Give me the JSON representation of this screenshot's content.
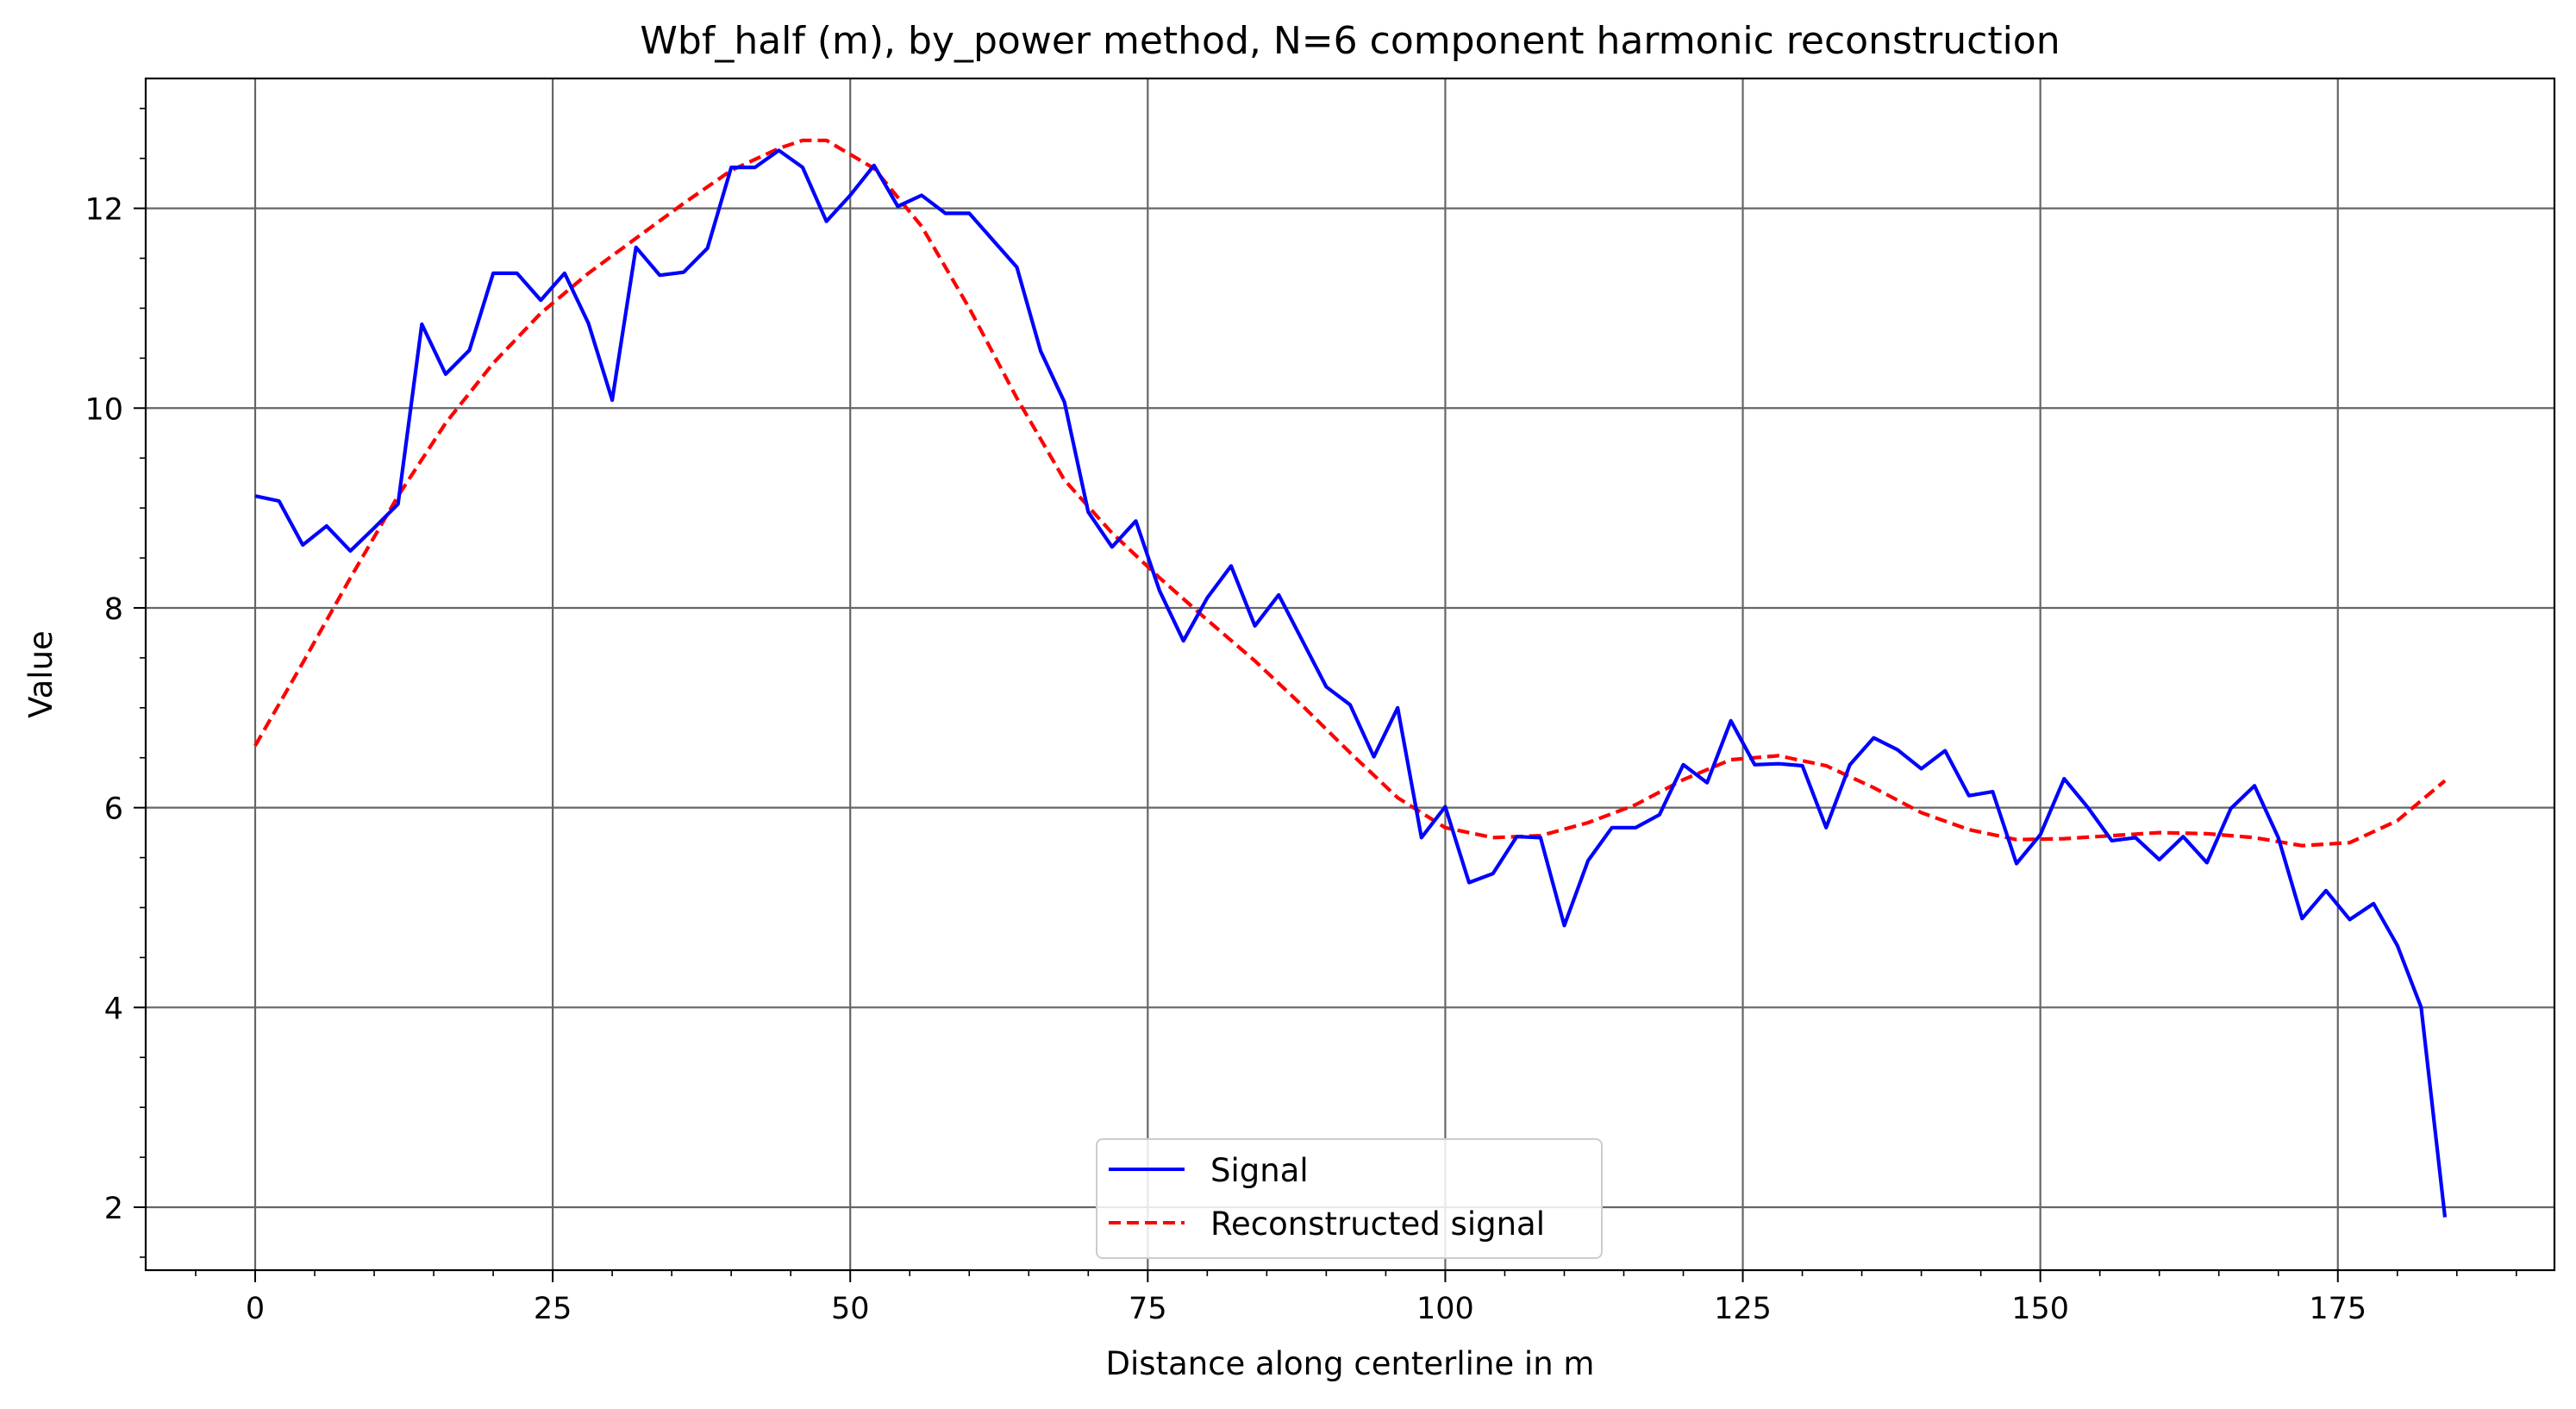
{
  "chart_data": {
    "type": "line",
    "title": "Wbf_half (m), by_power method, N=6 component harmonic reconstruction",
    "xlabel": "Distance along centerline in m",
    "ylabel": "Value",
    "xlim": [
      -9.2,
      193.2
    ],
    "ylim": [
      1.37,
      13.3
    ],
    "xticks": [
      0,
      25,
      50,
      75,
      100,
      125,
      150,
      175
    ],
    "yticks": [
      2,
      4,
      6,
      8,
      10,
      12
    ],
    "grid": true,
    "legend": {
      "position": "bottom-center",
      "entries": [
        "Signal",
        "Reconstructed signal"
      ]
    },
    "series": [
      {
        "name": "Signal",
        "color": "#0000ff",
        "style": "solid",
        "x": [
          0,
          2,
          4,
          6,
          8,
          10,
          12,
          14,
          16,
          18,
          20,
          22,
          24,
          26,
          28,
          30,
          32,
          34,
          36,
          38,
          40,
          42,
          44,
          46,
          48,
          50,
          52,
          54,
          56,
          58,
          60,
          62,
          64,
          66,
          68,
          70,
          72,
          74,
          76,
          78,
          80,
          82,
          84,
          86,
          88,
          90,
          92,
          94,
          96,
          98,
          100,
          102,
          104,
          106,
          108,
          110,
          112,
          114,
          116,
          118,
          120,
          122,
          124,
          126,
          128,
          130,
          132,
          134,
          136,
          138,
          140,
          142,
          144,
          146,
          148,
          150,
          152,
          154,
          156,
          158,
          160,
          162,
          164,
          166,
          168,
          170,
          172,
          174,
          176,
          178,
          180,
          182,
          184
        ],
        "y": [
          9.12,
          9.07,
          8.63,
          8.82,
          8.57,
          8.8,
          9.04,
          10.84,
          10.34,
          10.58,
          11.35,
          11.35,
          11.08,
          11.35,
          10.85,
          10.08,
          11.61,
          11.33,
          11.36,
          11.6,
          12.41,
          12.41,
          12.58,
          12.41,
          11.87,
          12.13,
          12.43,
          12.02,
          12.13,
          11.95,
          11.95,
          11.68,
          11.41,
          10.57,
          10.06,
          8.96,
          8.61,
          8.87,
          8.17,
          7.67,
          8.1,
          8.42,
          7.82,
          8.13,
          7.67,
          7.21,
          7.03,
          6.51,
          7.0,
          5.7,
          6.01,
          5.25,
          5.34,
          5.71,
          5.7,
          4.82,
          5.47,
          5.8,
          5.8,
          5.93,
          6.43,
          6.25,
          6.87,
          6.43,
          6.44,
          6.42,
          5.8,
          6.43,
          6.7,
          6.58,
          6.39,
          6.57,
          6.12,
          6.16,
          5.44,
          5.73,
          6.29,
          6.0,
          5.67,
          5.7,
          5.48,
          5.71,
          5.45,
          5.99,
          6.22,
          5.7,
          4.89,
          5.17,
          4.88,
          5.04,
          4.62,
          4.0,
          1.9
        ]
      },
      {
        "name": "Reconstructed signal",
        "color": "#ff0000",
        "style": "dashed",
        "x": [
          0,
          4,
          8,
          12,
          16,
          20,
          24,
          28,
          32,
          36,
          40,
          44,
          46,
          48,
          52,
          56,
          60,
          64,
          68,
          72,
          76,
          80,
          84,
          88,
          92,
          96,
          100,
          104,
          108,
          112,
          116,
          120,
          124,
          128,
          132,
          136,
          140,
          144,
          148,
          152,
          156,
          160,
          164,
          168,
          172,
          176,
          180,
          184
        ],
        "y": [
          6.62,
          7.45,
          8.3,
          9.12,
          9.85,
          10.45,
          10.95,
          11.35,
          11.7,
          12.05,
          12.38,
          12.6,
          12.68,
          12.68,
          12.4,
          11.82,
          11.0,
          10.1,
          9.28,
          8.75,
          8.3,
          7.88,
          7.47,
          7.02,
          6.55,
          6.1,
          5.8,
          5.7,
          5.72,
          5.85,
          6.03,
          6.28,
          6.48,
          6.52,
          6.42,
          6.2,
          5.95,
          5.78,
          5.68,
          5.69,
          5.72,
          5.75,
          5.74,
          5.7,
          5.62,
          5.65,
          5.87,
          6.27
        ]
      }
    ]
  }
}
